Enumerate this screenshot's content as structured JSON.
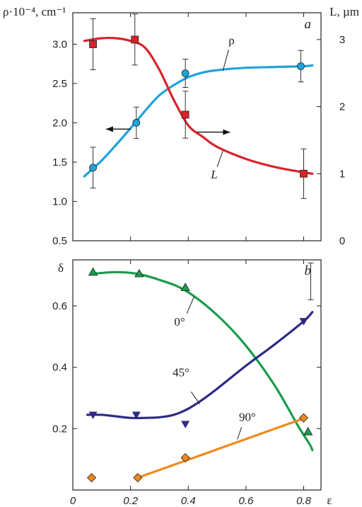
{
  "chart_data": [
    {
      "panel_label": "a",
      "type": "line",
      "y_left_label": "ρ·10⁻⁴, cm⁻¹",
      "y_right_label": "L, µm",
      "y_left_range": [
        0.5,
        3.4
      ],
      "y_right_range": [
        0,
        3.4
      ],
      "y_left_ticks": [
        "0.5",
        "1.0",
        "1.5",
        "2.0",
        "2.5",
        "3.0"
      ],
      "y_right_ticks": [
        "0",
        "1",
        "2",
        "3"
      ],
      "grid": false,
      "series": [
        {
          "name": "ρ",
          "axis": "left",
          "color": "#1fa3dc",
          "marker": "circle",
          "points": [
            {
              "x": 0.07,
              "y": 1.43,
              "err": 0.26
            },
            {
              "x": 0.22,
              "y": 2.0,
              "err": 0.2
            },
            {
              "x": 0.39,
              "y": 2.63,
              "err": 0.18
            },
            {
              "x": 0.79,
              "y": 2.72,
              "err": 0.2
            }
          ],
          "curve": [
            [
              0.04,
              1.32
            ],
            [
              0.1,
              1.52
            ],
            [
              0.15,
              1.72
            ],
            [
              0.2,
              1.93
            ],
            [
              0.25,
              2.15
            ],
            [
              0.3,
              2.35
            ],
            [
              0.35,
              2.48
            ],
            [
              0.4,
              2.58
            ],
            [
              0.45,
              2.64
            ],
            [
              0.5,
              2.67
            ],
            [
              0.6,
              2.7
            ],
            [
              0.7,
              2.71
            ],
            [
              0.8,
              2.72
            ],
            [
              0.83,
              2.73
            ]
          ]
        },
        {
          "name": "L",
          "axis": "right",
          "color": "#d7242b",
          "marker": "square",
          "points": [
            {
              "x": 0.07,
              "y": 2.93,
              "err": 0.38
            },
            {
              "x": 0.215,
              "y": 3.0,
              "err": 0.38
            },
            {
              "x": 0.39,
              "y": 1.88,
              "err": 0.35
            },
            {
              "x": 0.8,
              "y": 1.0,
              "err": 0.37
            }
          ],
          "curve": [
            [
              0.04,
              2.98
            ],
            [
              0.1,
              3.02
            ],
            [
              0.15,
              3.02
            ],
            [
              0.2,
              2.98
            ],
            [
              0.25,
              2.88
            ],
            [
              0.3,
              2.55
            ],
            [
              0.35,
              2.1
            ],
            [
              0.4,
              1.72
            ],
            [
              0.45,
              1.55
            ],
            [
              0.5,
              1.4
            ],
            [
              0.6,
              1.22
            ],
            [
              0.7,
              1.1
            ],
            [
              0.8,
              1.02
            ],
            [
              0.83,
              1.0
            ]
          ]
        }
      ],
      "annotations": [
        "ρ",
        "L"
      ]
    },
    {
      "panel_label": "b",
      "type": "line",
      "y_label": "δ",
      "x_label": "ε",
      "y_range": [
        0.0,
        0.75
      ],
      "y_ticks": [
        "0.2",
        "0.4",
        "0.6"
      ],
      "x_range": [
        0.0,
        0.86
      ],
      "x_ticks": [
        "0",
        "0.2",
        "0.4",
        "0.6",
        "0.8"
      ],
      "grid": false,
      "error_bar_example": {
        "x": 0.8,
        "y_low": 0.62,
        "y_high": 0.74
      },
      "series": [
        {
          "name": "0°",
          "color": "#1a9b4b",
          "marker": "triangle-up",
          "points": [
            [
              0.07,
              0.71
            ],
            [
              0.23,
              0.705
            ],
            [
              0.39,
              0.66
            ],
            [
              0.815,
              0.19
            ]
          ],
          "curve": [
            [
              0.07,
              0.705
            ],
            [
              0.15,
              0.71
            ],
            [
              0.22,
              0.705
            ],
            [
              0.3,
              0.685
            ],
            [
              0.39,
              0.65
            ],
            [
              0.5,
              0.57
            ],
            [
              0.6,
              0.47
            ],
            [
              0.7,
              0.34
            ],
            [
              0.78,
              0.21
            ],
            [
              0.82,
              0.15
            ],
            [
              0.83,
              0.13
            ]
          ]
        },
        {
          "name": "45°",
          "color": "#2d2a85",
          "marker": "triangle-down",
          "points": [
            [
              0.07,
              0.245
            ],
            [
              0.22,
              0.245
            ],
            [
              0.39,
              0.215
            ],
            [
              0.8,
              0.55
            ]
          ],
          "curve": [
            [
              0.05,
              0.245
            ],
            [
              0.1,
              0.245
            ],
            [
              0.15,
              0.24
            ],
            [
              0.2,
              0.235
            ],
            [
              0.25,
              0.235
            ],
            [
              0.3,
              0.237
            ],
            [
              0.35,
              0.245
            ],
            [
              0.4,
              0.265
            ],
            [
              0.45,
              0.295
            ],
            [
              0.5,
              0.33
            ],
            [
              0.6,
              0.405
            ],
            [
              0.7,
              0.475
            ],
            [
              0.8,
              0.55
            ],
            [
              0.83,
              0.58
            ]
          ]
        },
        {
          "name": "90°",
          "color": "#f0891c",
          "marker": "diamond",
          "points": [
            [
              0.065,
              0.04
            ],
            [
              0.225,
              0.04
            ],
            [
              0.39,
              0.105
            ],
            [
              0.8,
              0.235
            ]
          ],
          "curve": [
            [
              0.225,
              0.04
            ],
            [
              0.4,
              0.1
            ],
            [
              0.6,
              0.165
            ],
            [
              0.79,
              0.23
            ]
          ]
        }
      ],
      "annotations": [
        "0°",
        "45°",
        "90°"
      ]
    }
  ]
}
